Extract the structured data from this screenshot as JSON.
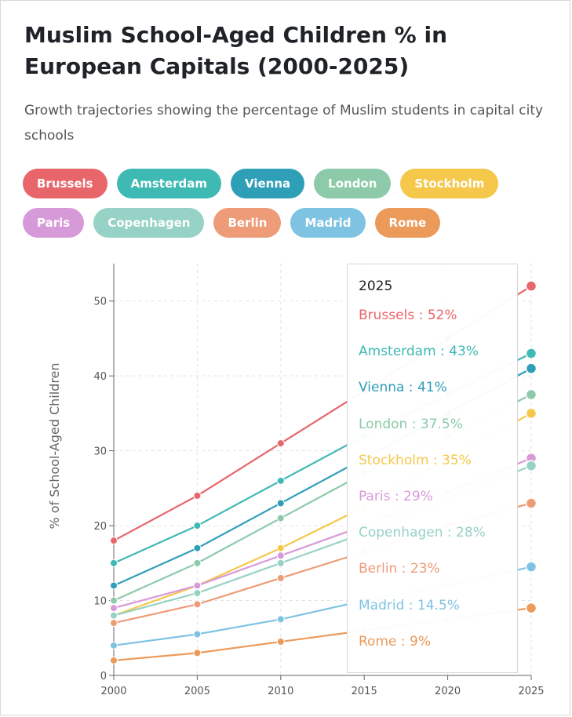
{
  "header": {
    "title": "Muslim School-Aged Children % in European Capitals (2000-2025)",
    "subtitle": "Growth trajectories showing the percentage of Muslim students in capital city schools"
  },
  "legend": [
    {
      "label": "Brussels",
      "color": "#e8656a"
    },
    {
      "label": "Amsterdam",
      "color": "#3fb9b4"
    },
    {
      "label": "Vienna",
      "color": "#2f9fb8"
    },
    {
      "label": "London",
      "color": "#8ccaa9"
    },
    {
      "label": "Stockholm",
      "color": "#f5c84c"
    },
    {
      "label": "Paris",
      "color": "#d79ad9"
    },
    {
      "label": "Copenhagen",
      "color": "#96d2c5"
    },
    {
      "label": "Berlin",
      "color": "#ee9b78"
    },
    {
      "label": "Madrid",
      "color": "#7fc3e2"
    },
    {
      "label": "Rome",
      "color": "#eb9a5a"
    }
  ],
  "tooltip": {
    "header": "2025",
    "rows": [
      {
        "text": "Brussels : 52%",
        "color": "#e8656a"
      },
      {
        "text": "Amsterdam : 43%",
        "color": "#3fb9b4"
      },
      {
        "text": "Vienna : 41%",
        "color": "#2f9fb8"
      },
      {
        "text": "London : 37.5%",
        "color": "#8ccaa9"
      },
      {
        "text": "Stockholm : 35%",
        "color": "#f5c84c"
      },
      {
        "text": "Paris : 29%",
        "color": "#d79ad9"
      },
      {
        "text": "Copenhagen : 28%",
        "color": "#96d2c5"
      },
      {
        "text": "Berlin : 23%",
        "color": "#ee9b78"
      },
      {
        "text": "Madrid : 14.5%",
        "color": "#7fc3e2"
      },
      {
        "text": "Rome : 9%",
        "color": "#eb9a5a"
      }
    ]
  },
  "chart_data": {
    "type": "line",
    "title": "Muslim School-Aged Children % in European Capitals (2000-2025)",
    "ylabel": "% of School-Aged Children",
    "xlabel": "",
    "x": [
      2000,
      2005,
      2010,
      2015,
      2020,
      2025
    ],
    "xlim": [
      2000,
      2025
    ],
    "ylim": [
      0,
      55
    ],
    "yticks": [
      0,
      10,
      20,
      30,
      40,
      50
    ],
    "grid": true,
    "legend_position": "top",
    "series": [
      {
        "name": "Brussels",
        "color": "#e8656a",
        "values": [
          18,
          24,
          31,
          38,
          45,
          52
        ]
      },
      {
        "name": "Amsterdam",
        "color": "#3fb9b4",
        "values": [
          15,
          20,
          26,
          32,
          37.5,
          43
        ]
      },
      {
        "name": "Vienna",
        "color": "#2f9fb8",
        "values": [
          12,
          17,
          23,
          29,
          35,
          41
        ]
      },
      {
        "name": "London",
        "color": "#8ccaa9",
        "values": [
          10,
          15,
          21,
          27,
          32,
          37.5
        ]
      },
      {
        "name": "Stockholm",
        "color": "#f5c84c",
        "values": [
          8,
          12,
          17,
          22.5,
          29,
          35
        ]
      },
      {
        "name": "Paris",
        "color": "#d79ad9",
        "values": [
          9,
          12,
          16,
          20,
          24.5,
          29
        ]
      },
      {
        "name": "Copenhagen",
        "color": "#96d2c5",
        "values": [
          8,
          11,
          15,
          19,
          23.5,
          28
        ]
      },
      {
        "name": "Berlin",
        "color": "#ee9b78",
        "values": [
          7,
          9.5,
          13,
          16.5,
          20,
          23
        ]
      },
      {
        "name": "Madrid",
        "color": "#7fc3e2",
        "values": [
          4,
          5.5,
          7.5,
          10,
          12,
          14.5
        ]
      },
      {
        "name": "Rome",
        "color": "#eb9a5a",
        "values": [
          2,
          3,
          4.5,
          6,
          7.5,
          9
        ]
      }
    ]
  }
}
